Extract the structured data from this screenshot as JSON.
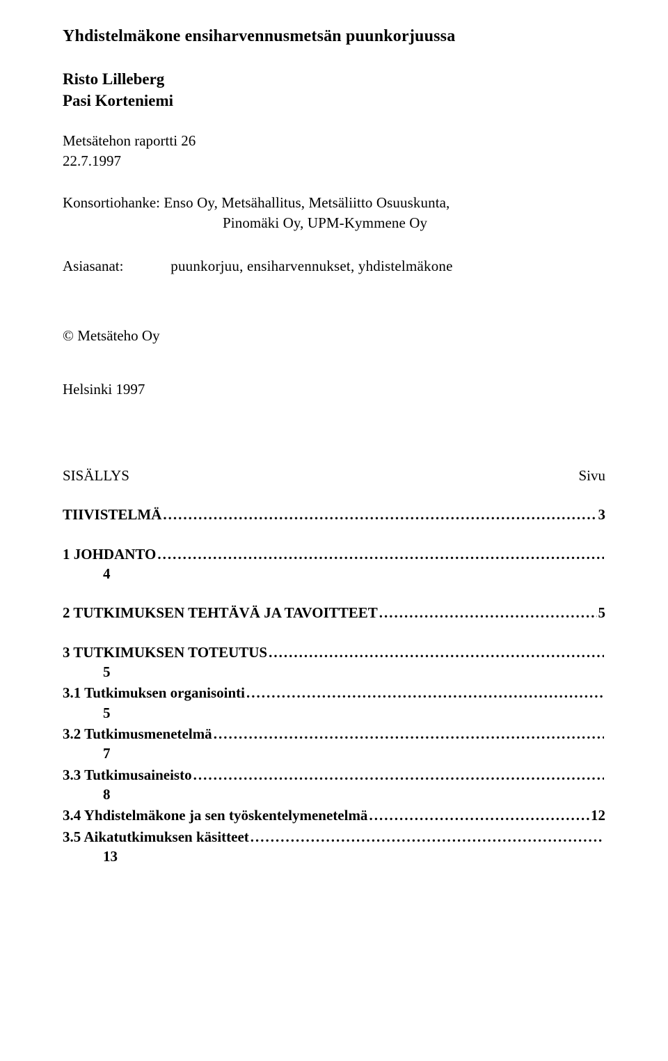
{
  "title": "Yhdistelmäkone ensiharvennusmetsän puunkorjuussa",
  "authors": [
    "Risto Lilleberg",
    "Pasi Korteniemi"
  ],
  "report_line1": "Metsätehon raportti  26",
  "report_line2": "22.7.1997",
  "consortium_label": "Konsortiohanke:",
  "consortium_partners_line1": " Enso Oy, Metsähallitus, Metsäliitto Osuuskunta,",
  "consortium_partners_line2": "Pinomäki Oy,  UPM-Kymmene Oy",
  "keywords_label": "Asiasanat:",
  "keywords_values": "puunkorjuu, ensiharvennukset, yhdistelmäkone",
  "copyright": "©   Metsäteho Oy",
  "place_year": "Helsinki 1997",
  "toc_heading": "SISÄLLYS",
  "toc_page_label": "Sivu",
  "toc": [
    {
      "label": "TIIVISTELMÄ",
      "page": "3",
      "bold": true,
      "inline": true
    },
    {
      "label": "1 JOHDANTO",
      "page": "4",
      "bold": true,
      "inline": false,
      "gap": true
    },
    {
      "label": "2 TUTKIMUKSEN TEHTÄVÄ JA TAVOITTEET",
      "page": "5",
      "bold": true,
      "inline": true,
      "gap": true
    },
    {
      "label": "3 TUTKIMUKSEN TOTEUTUS",
      "page": "5",
      "bold": true,
      "inline": false,
      "gap": true
    },
    {
      "label": "3.1 Tutkimuksen organisointi",
      "page": "5",
      "bold": true,
      "inline": false,
      "sub": false
    },
    {
      "label": "3.2 Tutkimusmenetelmä",
      "page": "7",
      "bold": true,
      "inline": false,
      "sub": false
    },
    {
      "label": "3.3 Tutkimusaineisto",
      "page": "8",
      "bold": true,
      "inline": false,
      "sub": false
    },
    {
      "label": "3.4 Yhdistelmäkone ja sen työskentelymenetelmä",
      "page": "12",
      "bold": true,
      "inline": true,
      "sub": false
    },
    {
      "label": "3.5 Aikatutkimuksen käsitteet",
      "page": "13",
      "bold": true,
      "inline": false,
      "sub": false
    }
  ]
}
